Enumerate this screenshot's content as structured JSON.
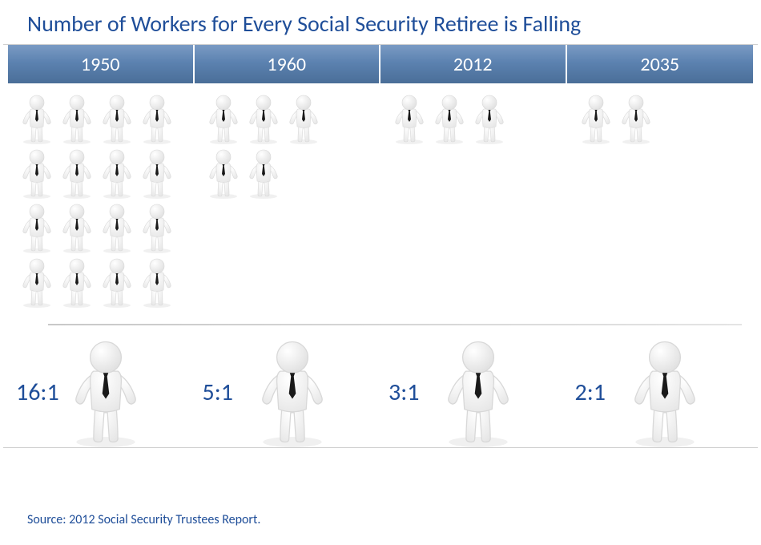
{
  "title": "Number of Workers for Every Social Security Retiree is Falling",
  "source": "Source: 2012 Social Security Trustees Report.",
  "title_color": "#1f4e99",
  "ratio_color": "#1f4e99",
  "header_gradient": [
    "#7a9bc4",
    "#5c82b0",
    "#4a6e98"
  ],
  "header_text_color": "#ffffff",
  "background_color": "#ffffff",
  "title_fontsize": 28,
  "year_fontsize": 24,
  "ratio_fontsize": 30,
  "source_fontsize": 16,
  "columns": [
    {
      "year": "1950",
      "workers": 16,
      "per_row": 4,
      "ratio": "16:1"
    },
    {
      "year": "1960",
      "workers": 5,
      "per_row": 3,
      "ratio": "5:1"
    },
    {
      "year": "2012",
      "workers": 3,
      "per_row": 3,
      "ratio": "3:1"
    },
    {
      "year": "2035",
      "workers": 2,
      "per_row": 2,
      "ratio": "2:1"
    }
  ],
  "figure": {
    "body_fill": "#f8f8f8",
    "body_stroke": "#d8d8d8",
    "tie_fill": "#1a1a1a",
    "shadow_fill": "#f0f0f0"
  }
}
